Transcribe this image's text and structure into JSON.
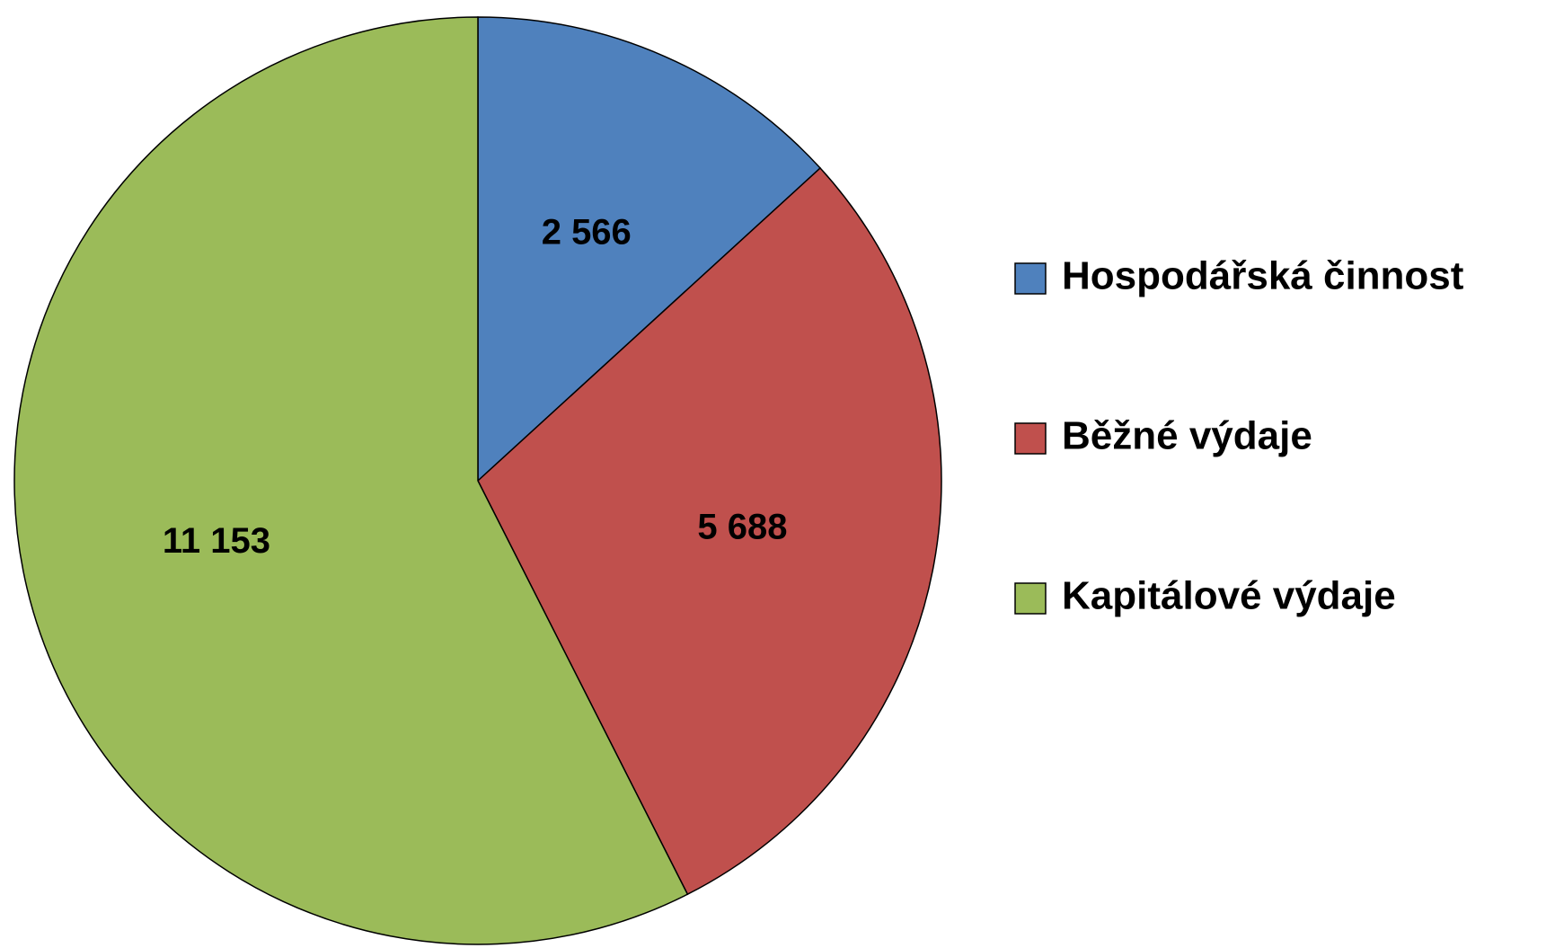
{
  "chart_data": {
    "type": "pie",
    "categories": [
      "Hospodářská činnost",
      "Běžné výdaje",
      "Kapitálové výdaje"
    ],
    "values": [
      2566,
      5688,
      11153
    ],
    "value_labels": [
      "2 566",
      "5 688",
      "11 153"
    ],
    "colors": [
      "#4f81bd",
      "#c0504d",
      "#9bbb59"
    ],
    "legend": "right"
  }
}
